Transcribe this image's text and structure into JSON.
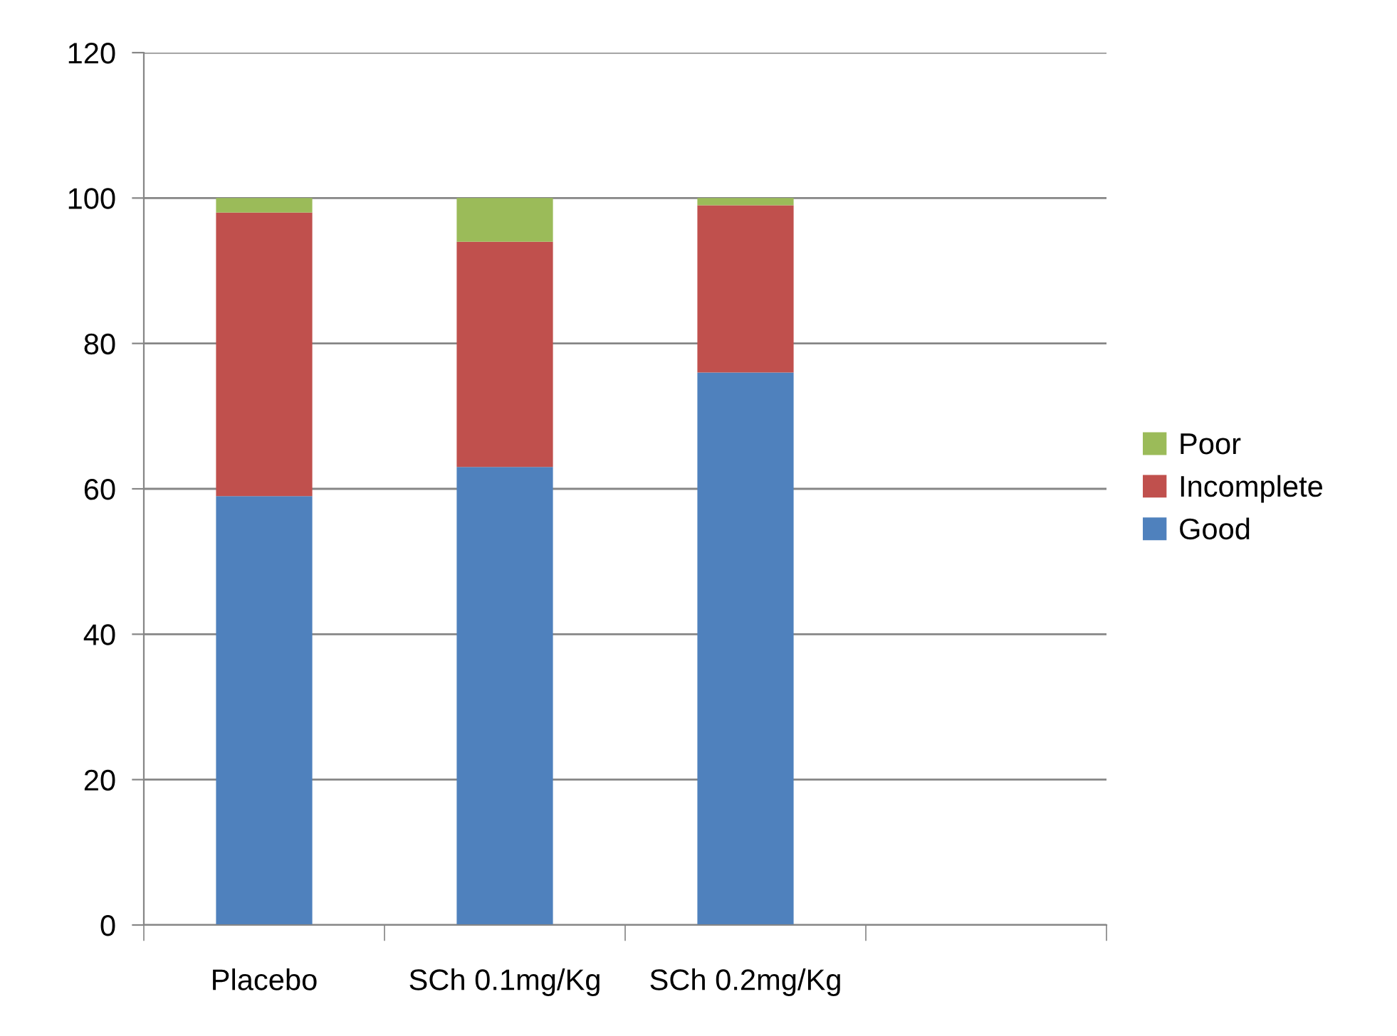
{
  "chart_data": {
    "type": "bar",
    "stacked": true,
    "categories": [
      "Placebo",
      "SCh 0.1mg/Kg",
      "SCh 0.2mg/Kg",
      null
    ],
    "series": [
      {
        "name": "Good",
        "color": "#4f81bd",
        "values": [
          59,
          63,
          76,
          null
        ]
      },
      {
        "name": "Incomplete",
        "color": "#c0504d",
        "values": [
          39,
          31,
          23,
          null
        ]
      },
      {
        "name": "Poor",
        "color": "#9bbb59",
        "values": [
          2,
          6,
          1,
          null
        ]
      }
    ],
    "ylim": [
      0,
      120
    ],
    "yticks": [
      0,
      20,
      40,
      60,
      80,
      100,
      120
    ],
    "grid": "y",
    "legend": "right"
  }
}
